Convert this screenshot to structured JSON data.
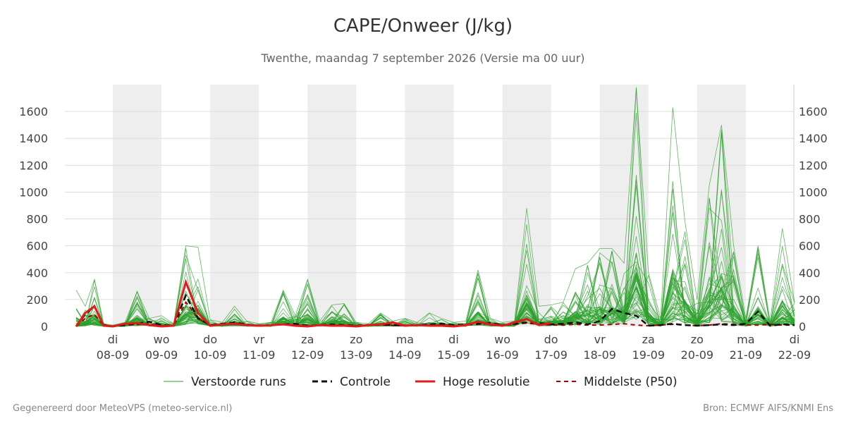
{
  "title": "CAPE/Onweer (J/kg)",
  "subtitle": "Twenthe, maandag  7 september 2026 (Versie ma 00 uur)",
  "footer": {
    "left": "Gegenereerd door MeteoVPS (meteo-service.nl)",
    "right": "Bron: ECMWF AIFS/KNMI Ens"
  },
  "colors": {
    "ensemble": "#2ca02c",
    "control": "#111111",
    "hires": "#e31a1c",
    "median": "#a00000",
    "night": "#eeeeee",
    "grid": "#dddddd"
  },
  "chart_data": {
    "type": "line",
    "title": "CAPE/Onweer (J/kg)",
    "ylim": [
      0,
      1800
    ],
    "yticks": [
      0,
      200,
      400,
      600,
      800,
      1000,
      1200,
      1400,
      1600
    ],
    "x_unit": "days since 07-09 00h",
    "xlim": [
      0,
      15
    ],
    "xticks": [
      {
        "day": "di",
        "date": "08-09"
      },
      {
        "day": "wo",
        "date": "09-09"
      },
      {
        "day": "do",
        "date": "10-09"
      },
      {
        "day": "vr",
        "date": "11-09"
      },
      {
        "day": "za",
        "date": "12-09"
      },
      {
        "day": "zo",
        "date": "13-09"
      },
      {
        "day": "ma",
        "date": "14-09"
      },
      {
        "day": "di",
        "date": "15-09"
      },
      {
        "day": "wo",
        "date": "16-09"
      },
      {
        "day": "do",
        "date": "17-09"
      },
      {
        "day": "vr",
        "date": "18-09"
      },
      {
        "day": "za",
        "date": "19-09"
      },
      {
        "day": "zo",
        "date": "20-09"
      },
      {
        "day": "ma",
        "date": "21-09"
      },
      {
        "day": "di",
        "date": "22-09"
      }
    ],
    "shaded_days": [
      1,
      3,
      5,
      7,
      9,
      11,
      13
    ],
    "legend": [
      {
        "name": "Verstoorde runs",
        "style": "thin-green"
      },
      {
        "name": "Controle",
        "style": "dashed-black"
      },
      {
        "name": "Hoge resolutie",
        "style": "solid-red"
      },
      {
        "name": "Middelste (P50)",
        "style": "dashed-darkred"
      }
    ],
    "legend_position": "bottom",
    "series": [
      {
        "name": "Controle",
        "x": [
          0,
          0.25,
          0.5,
          0.75,
          1,
          1.25,
          1.5,
          1.75,
          2,
          2.25,
          2.5,
          2.75,
          3,
          3.25,
          3.5,
          3.75,
          4,
          4.25,
          4.5,
          4.75,
          5,
          5.25,
          5.5,
          5.75,
          6,
          6.25,
          6.5,
          6.75,
          7,
          7.25,
          7.5,
          7.75,
          8,
          8.25,
          8.5,
          8.75,
          9,
          9.25,
          9.5,
          9.75,
          10,
          10.25,
          10.5,
          10.75,
          11,
          11.25,
          11.5,
          11.75,
          12,
          12.25,
          12.5,
          12.75,
          13,
          13.25,
          13.5,
          13.75,
          14,
          14.25,
          14.5,
          14.75,
          15
        ],
        "y": [
          0,
          90,
          150,
          10,
          0,
          10,
          20,
          35,
          10,
          5,
          230,
          60,
          10,
          20,
          30,
          15,
          5,
          10,
          15,
          20,
          5,
          10,
          15,
          10,
          5,
          10,
          15,
          10,
          5,
          10,
          15,
          20,
          10,
          15,
          20,
          25,
          10,
          20,
          30,
          25,
          15,
          20,
          30,
          15,
          40,
          130,
          100,
          80,
          5,
          10,
          20,
          10,
          5,
          10,
          15,
          10,
          20,
          110,
          5,
          15,
          10
        ]
      },
      {
        "name": "Hoge resolutie",
        "x": [
          0,
          0.25,
          0.5,
          0.75,
          1,
          1.25,
          1.5,
          1.75,
          2,
          2.25,
          2.5,
          2.75,
          3,
          3.25,
          3.5,
          3.75,
          4,
          4.25,
          4.5,
          4.75,
          5,
          5.25,
          5.5,
          5.75,
          6,
          6.25,
          6.5,
          6.75,
          7,
          7.25,
          7.5,
          7.75,
          8,
          8.25,
          8.5,
          8.75,
          9,
          9.25,
          9.5,
          9.75,
          10
        ],
        "y": [
          0,
          100,
          150,
          5,
          0,
          20,
          25,
          10,
          0,
          5,
          330,
          100,
          5,
          15,
          20,
          10,
          5,
          10,
          15,
          5,
          0,
          10,
          5,
          5,
          0,
          10,
          15,
          30,
          5,
          10,
          5,
          5,
          0,
          10,
          35,
          15,
          5,
          30,
          55,
          10,
          25
        ]
      },
      {
        "name": "Middelste (P50)",
        "x": [
          0,
          0.25,
          0.5,
          0.75,
          1,
          1.25,
          1.5,
          1.75,
          2,
          2.25,
          2.5,
          2.75,
          3,
          3.25,
          3.5,
          3.75,
          4,
          4.25,
          4.5,
          4.75,
          5,
          5.25,
          5.5,
          5.75,
          6,
          6.25,
          6.5,
          6.75,
          7,
          7.25,
          7.5,
          7.75,
          8,
          8.25,
          8.5,
          8.75,
          9,
          9.25,
          9.5,
          9.75,
          10,
          10.25,
          10.5,
          10.75,
          11,
          11.25,
          11.5,
          11.75,
          12,
          12.25,
          12.5,
          12.75,
          13,
          13.25,
          13.5,
          13.75,
          14,
          14.25,
          14.5,
          14.75,
          15
        ],
        "y": [
          0,
          60,
          90,
          5,
          0,
          10,
          15,
          20,
          5,
          5,
          180,
          60,
          5,
          15,
          25,
          10,
          5,
          10,
          15,
          10,
          5,
          10,
          10,
          8,
          5,
          8,
          10,
          8,
          5,
          8,
          10,
          10,
          5,
          10,
          15,
          20,
          10,
          15,
          25,
          15,
          10,
          10,
          15,
          10,
          10,
          15,
          20,
          10,
          5,
          10,
          15,
          10,
          5,
          10,
          20,
          15,
          10,
          10,
          15,
          10,
          10
        ]
      },
      {
        "name": "Verstoorde runs",
        "x": [
          0,
          0.25,
          0.5,
          0.75,
          1,
          1.25,
          1.5,
          1.75,
          2,
          2.25,
          2.5,
          2.75,
          3,
          3.25,
          3.5,
          3.75,
          4,
          4.25,
          4.5,
          4.75,
          5,
          5.25,
          5.5,
          5.75,
          6,
          6.25,
          6.5,
          6.75,
          7,
          7.25,
          7.5,
          7.75,
          8,
          8.25,
          8.5,
          8.75,
          9,
          9.25,
          9.5,
          9.75,
          10,
          10.25,
          10.5,
          10.75,
          11,
          11.25,
          11.5,
          11.75,
          12,
          12.25,
          12.5,
          12.75,
          13,
          13.25,
          13.5,
          13.75,
          14,
          14.25,
          14.5,
          14.75,
          15
        ],
        "y": [
          [
            270,
            150,
            350,
            20,
            10,
            30,
            260,
            60,
            80,
            20,
            600,
            590,
            50,
            30,
            150,
            40,
            20,
            30,
            270,
            80,
            350,
            40,
            160,
            170,
            30,
            20,
            100,
            40,
            60,
            30,
            100,
            60,
            30,
            40,
            420,
            60,
            30,
            40,
            880,
            150,
            160,
            180,
            430,
            470,
            580,
            580,
            470,
            1780,
            400,
            60,
            1630,
            780,
            200,
            1050,
            1500,
            600,
            60,
            600,
            40,
            730,
            180
          ]
        ],
        "_comment": "envelope"
      }
    ]
  }
}
